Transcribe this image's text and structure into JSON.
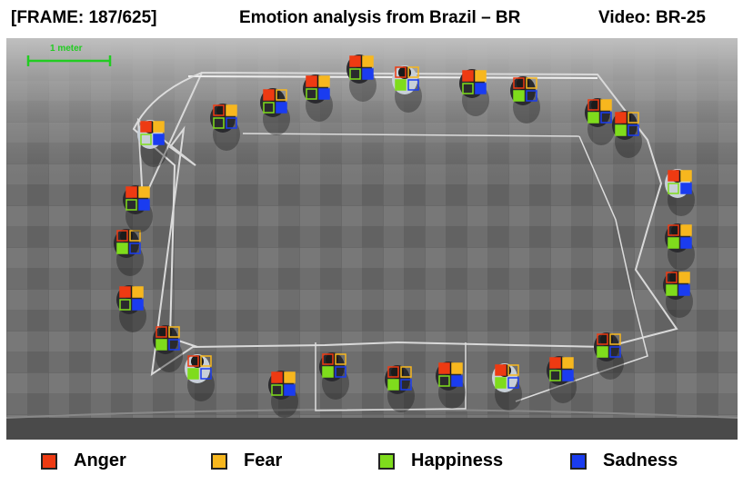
{
  "header": {
    "frame_label": "[FRAME: 187/625]",
    "title": "Emotion analysis  from Brazil – BR",
    "video_label": "Video: BR-25"
  },
  "scene": {
    "scale_label": "1 meter",
    "scale_color": "#22cc22"
  },
  "legend": {
    "items": [
      {
        "label": "Anger",
        "color": "#ee3a12"
      },
      {
        "label": "Fear",
        "color": "#f7b71e"
      },
      {
        "label": "Happiness",
        "color": "#7fdc1c"
      },
      {
        "label": "Sadness",
        "color": "#1a3cf0"
      }
    ]
  }
}
